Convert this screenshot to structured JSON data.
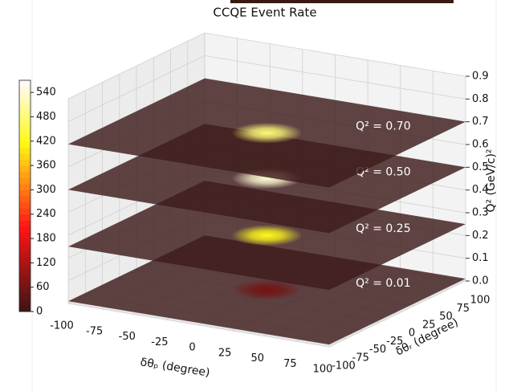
{
  "chart_data": {
    "type": "surface3d",
    "title": "CCQE Event Rate",
    "xlabel": "δθₚ (degree)",
    "ylabel": "δθᵣ (degree)",
    "zlabel": "Q² (GeV/c)²",
    "xlim": [
      -100,
      100
    ],
    "xticks": [
      -100,
      -75,
      -50,
      -25,
      0,
      25,
      50,
      75,
      100
    ],
    "ylim": [
      -100,
      100
    ],
    "yticks": [
      -100,
      -75,
      -50,
      -25,
      0,
      25,
      50,
      75,
      100
    ],
    "zlim": [
      0,
      0.9
    ],
    "zticks": [
      {
        "value": 0,
        "label": "0.0"
      },
      0.1,
      0.2,
      0.3,
      0.4,
      0.5,
      0.6,
      0.7,
      0.8,
      0.9
    ],
    "layers": {
      "values": [
        0.01,
        0.25,
        0.5,
        0.7
      ],
      "value_labels": [
        "Q² = 0.01",
        "Q² = 0.25",
        "Q² = 0.50",
        "Q² = 0.70"
      ],
      "peaks": [
        60,
        420,
        540,
        480
      ]
    },
    "colormap": "hot",
    "clim": [
      0,
      570
    ],
    "colorbar_ticks": [
      0,
      60,
      120,
      180,
      240,
      300,
      360,
      420,
      480,
      540
    ],
    "grid": true
  }
}
